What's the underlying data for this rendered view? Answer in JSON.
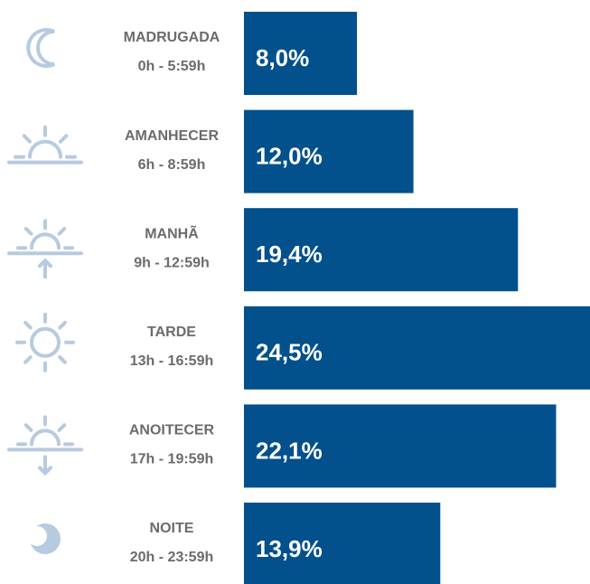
{
  "chart_data": {
    "type": "bar",
    "orientation": "horizontal",
    "categories": [
      "MADRUGADA",
      "AMANHECER",
      "MANHÃ",
      "TARDE",
      "ANOITECER",
      "NOITE"
    ],
    "category_ranges": [
      "0h - 5:59h",
      "6h - 8:59h",
      "9h - 12:59h",
      "13h - 16:59h",
      "17h - 19:59h",
      "20h - 23:59h"
    ],
    "values": [
      8.0,
      12.0,
      19.4,
      24.5,
      22.1,
      13.9
    ],
    "value_labels": [
      "8,0%",
      "12,0%",
      "19,4%",
      "24,5%",
      "22,1%",
      "13,9%"
    ],
    "color": "#02508c"
  }
}
